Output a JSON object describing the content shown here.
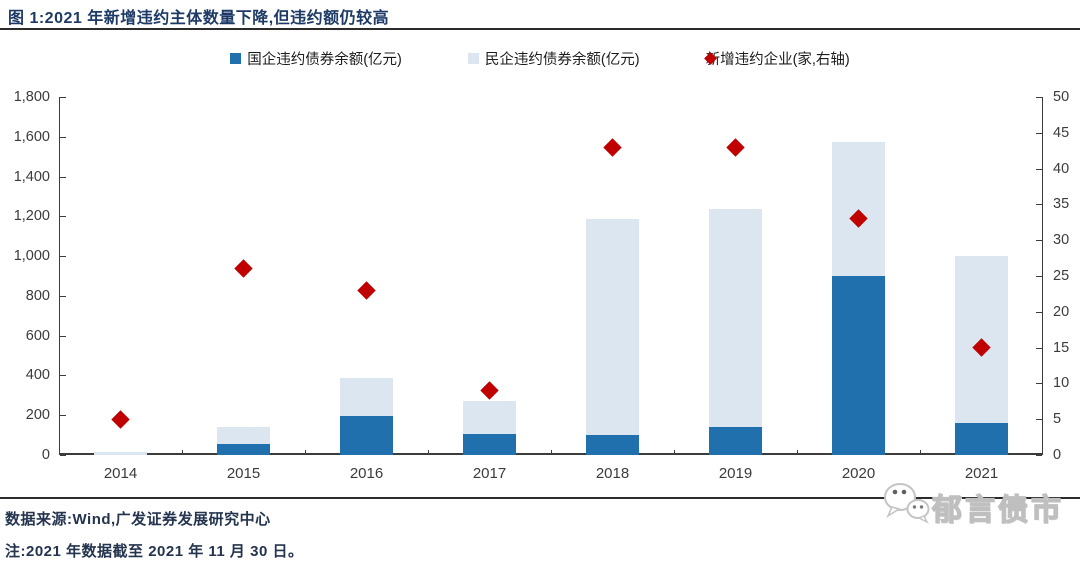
{
  "header": {
    "title": "图 1:2021 年新增违约主体数量下降,但违约额仍较高"
  },
  "legend": [
    {
      "label": "国企违约债券余额(亿元)",
      "marker": "square",
      "color": "#2070AE"
    },
    {
      "label": "民企违约债券余额(亿元)",
      "marker": "square",
      "color": "#DCE6F1"
    },
    {
      "label": "新增违约企业(家,右轴)",
      "marker": "diamond",
      "color": "#C00000"
    }
  ],
  "chart_data": {
    "type": "bar",
    "stacked": true,
    "title": "图 1:2021 年新增违约主体数量下降,但违约额仍较高",
    "categories": [
      "2014",
      "2015",
      "2016",
      "2017",
      "2018",
      "2019",
      "2020",
      "2021"
    ],
    "series": [
      {
        "name": "国企违约债券余额(亿元)",
        "type": "bar",
        "axis": "left",
        "color": "#2070AE",
        "values": [
          0,
          55,
          195,
          105,
          100,
          140,
          900,
          160
        ]
      },
      {
        "name": "民企违约债券余额(亿元)",
        "type": "bar",
        "axis": "left",
        "color": "#DCE6F1",
        "values": [
          15,
          85,
          190,
          165,
          1085,
          1095,
          675,
          840
        ]
      },
      {
        "name": "新增违约企业(家,右轴)",
        "type": "scatter",
        "marker": "diamond",
        "axis": "right",
        "color": "#C00000",
        "values": [
          5,
          26,
          23,
          9,
          43,
          43,
          33,
          15
        ]
      }
    ],
    "left_axis": {
      "min": 0,
      "max": 1800,
      "step": 200,
      "label_format": "thousands-comma"
    },
    "right_axis": {
      "min": 0,
      "max": 50,
      "step": 5
    },
    "xlabel": "",
    "ylabel": "",
    "grid": false,
    "legend_position": "top"
  },
  "footer": {
    "source": "数据来源:Wind,广发证券发展研究中心",
    "note": "注:2021 年数据截至 2021 年 11 月 30 日。",
    "logo_text": "郁言债市"
  }
}
